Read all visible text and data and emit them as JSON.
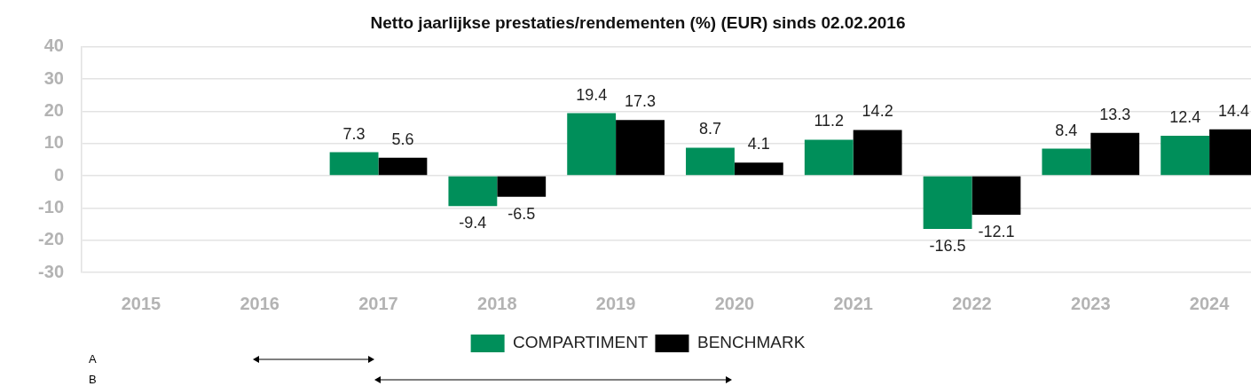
{
  "chart_data": {
    "type": "bar",
    "title": "Netto jaarlijkse prestaties/rendementen (%) (EUR) sinds 02.02.2016",
    "categories": [
      "2015",
      "2016",
      "2017",
      "2018",
      "2019",
      "2020",
      "2021",
      "2022",
      "2023",
      "2024"
    ],
    "series": [
      {
        "name": "COMPARTIMENT",
        "color": "#008f5a",
        "values": [
          null,
          null,
          7.3,
          -9.4,
          19.4,
          8.7,
          11.2,
          -16.5,
          8.4,
          12.4
        ]
      },
      {
        "name": "BENCHMARK",
        "color": "#000000",
        "values": [
          null,
          null,
          5.6,
          -6.5,
          17.3,
          4.1,
          14.2,
          -12.1,
          13.3,
          14.4
        ]
      }
    ],
    "ylim": [
      -30,
      40
    ],
    "yticks": [
      -30,
      -20,
      -10,
      0,
      10,
      20,
      30,
      40
    ],
    "grid": "y",
    "legend": "bottom",
    "data_labels": true,
    "annotations": [
      "A",
      "B"
    ]
  }
}
